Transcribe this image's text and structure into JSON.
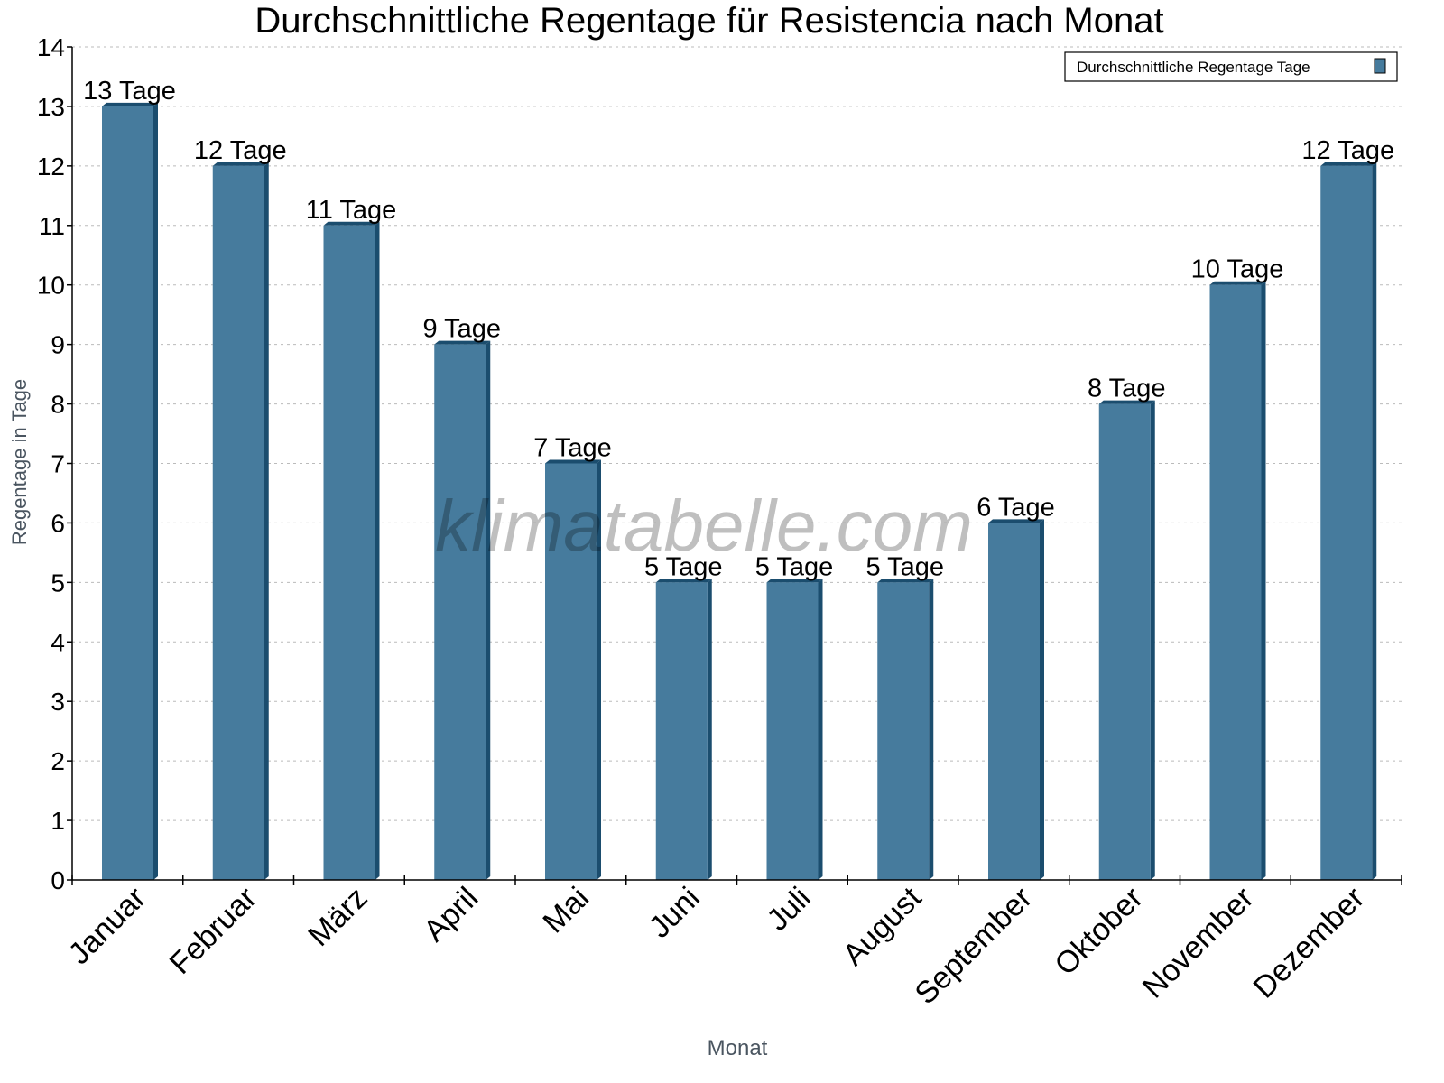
{
  "chart_data": {
    "type": "bar",
    "title": "Durchschnittliche Regentage für Resistencia nach Monat",
    "xlabel": "Monat",
    "ylabel": "Regentage in Tage",
    "categories": [
      "Januar",
      "Februar",
      "März",
      "April",
      "Mai",
      "Juni",
      "Juli",
      "August",
      "September",
      "Oktober",
      "November",
      "Dezember"
    ],
    "series": [
      {
        "name": "Durchschnittliche Regentage Tage",
        "values": [
          13,
          12,
          11,
          9,
          7,
          5,
          5,
          5,
          6,
          8,
          10,
          12
        ],
        "color": "#467b9d",
        "side_color": "#1b4d6e"
      }
    ],
    "data_labels": [
      "13 Tage",
      "12 Tage",
      "11 Tage",
      "9 Tage",
      "7 Tage",
      "5 Tage",
      "5 Tage",
      "5 Tage",
      "6 Tage",
      "8 Tage",
      "10 Tage",
      "12 Tage"
    ],
    "ylim": [
      0,
      14
    ],
    "yticks": [
      "0",
      "1",
      "2",
      "3",
      "4",
      "5",
      "6",
      "7",
      "8",
      "9",
      "10",
      "11",
      "12",
      "13",
      "14"
    ],
    "grid": true,
    "legend_position": "top-right",
    "watermark": "klimatabelle.com"
  }
}
